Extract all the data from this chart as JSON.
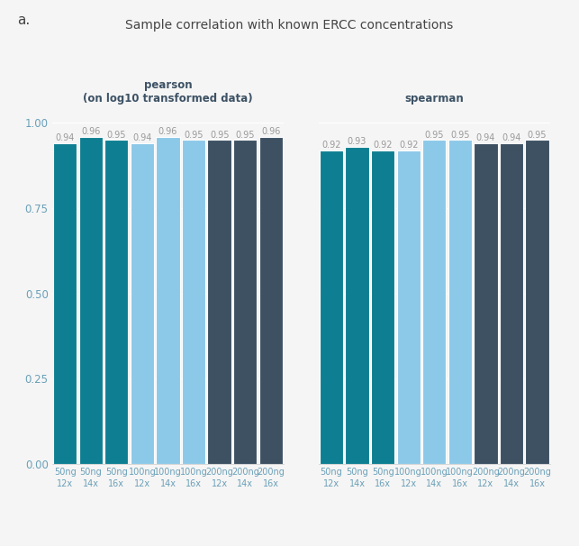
{
  "title": "Sample correlation with known ERCC concentrations",
  "panel_a_label": "a.",
  "left_subtitle": "pearson\n(on log10 transformed data)",
  "right_subtitle": "spearman",
  "pearson_values": [
    0.94,
    0.96,
    0.95,
    0.94,
    0.96,
    0.95,
    0.95,
    0.95,
    0.96
  ],
  "spearman_values": [
    0.92,
    0.93,
    0.92,
    0.92,
    0.95,
    0.95,
    0.94,
    0.94,
    0.95
  ],
  "x_labels": [
    "50ng\n12x",
    "50ng\n14x",
    "50ng\n16x",
    "100ng\n12x",
    "100ng\n14x",
    "100ng\n16x",
    "200ng\n12x",
    "200ng\n14x",
    "200ng\n16x"
  ],
  "bar_colors": [
    "#0e7f92",
    "#0e7f92",
    "#0e7f92",
    "#8cc8e8",
    "#8cc8e8",
    "#8cc8e8",
    "#3d5163",
    "#3d5163",
    "#3d5163"
  ],
  "ylim": [
    0.0,
    1.04
  ],
  "yticks": [
    0.0,
    0.25,
    0.5,
    0.75,
    1.0
  ],
  "background_color": "#f5f5f5",
  "bar_width": 0.92,
  "value_label_color": "#999999",
  "value_label_fontsize": 7.0,
  "axis_tick_color": "#6aa0b8",
  "title_fontsize": 10,
  "subtitle_fontsize": 8.5,
  "panel_label_fontsize": 11,
  "grid_color": "#ffffff",
  "bar_edge_color": "#ffffff",
  "bar_edge_width": 0.8
}
